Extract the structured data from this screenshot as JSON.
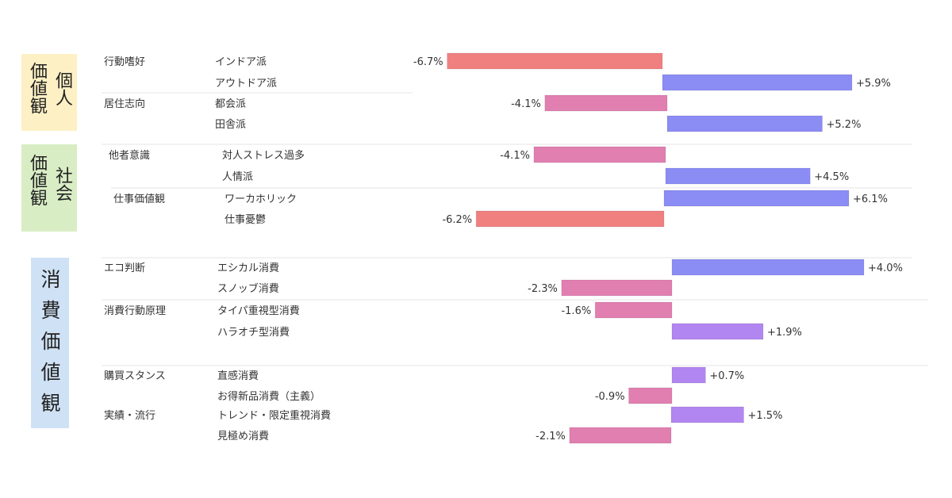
{
  "badges": {
    "personal": {
      "main": "価値観",
      "sub": "個人"
    },
    "social": {
      "main": "価値観",
      "sub": "社会"
    },
    "consumer": {
      "main": "消費価値観"
    }
  },
  "colors": {
    "negative_strong": "#f08080",
    "negative": "#e07fb0",
    "positive_strong": "#8c8cf5",
    "positive": "#b286f0",
    "separator": "#e6e6e6",
    "text": "#333333"
  },
  "chart_data": {
    "type": "bar",
    "orientation": "horizontal",
    "value_format": "signed percent",
    "groups": [
      {
        "name": "行動嗜好",
        "items": [
          {
            "label": "インドア派",
            "value": -6.7,
            "display": "-6.7%"
          },
          {
            "label": "アウトドア派",
            "value": 5.9,
            "display": "+5.9%"
          }
        ]
      },
      {
        "name": "居住志向",
        "items": [
          {
            "label": "都会派",
            "value": -4.1,
            "display": "-4.1%"
          },
          {
            "label": "田舎派",
            "value": 5.2,
            "display": "+5.2%"
          }
        ]
      },
      {
        "name": "他者意識",
        "items": [
          {
            "label": "対人ストレス過多",
            "value": -4.1,
            "display": "-4.1%"
          },
          {
            "label": "人情派",
            "value": 4.5,
            "display": "+4.5%"
          }
        ]
      },
      {
        "name": "仕事価値観",
        "items": [
          {
            "label": "ワーカホリック",
            "value": 6.1,
            "display": "+6.1%"
          },
          {
            "label": "仕事憂鬱",
            "value": -6.2,
            "display": "-6.2%"
          }
        ]
      },
      {
        "name": "エコ判断",
        "items": [
          {
            "label": "エシカル消費",
            "value": 4.0,
            "display": "+4.0%"
          },
          {
            "label": "スノッブ消費",
            "value": -2.3,
            "display": "-2.3%"
          }
        ]
      },
      {
        "name": "消費行動原理",
        "items": [
          {
            "label": "タイパ重視型消費",
            "value": -1.6,
            "display": "-1.6%"
          },
          {
            "label": "ハラオチ型消費",
            "value": 1.9,
            "display": "+1.9%"
          }
        ]
      },
      {
        "name": "購買スタンス",
        "items": [
          {
            "label": "直感消費",
            "value": 0.7,
            "display": "+0.7%"
          },
          {
            "label": "お得新品消費（主義）",
            "value": -0.9,
            "display": "-0.9%"
          }
        ]
      },
      {
        "name": "実績・流行",
        "items": [
          {
            "label": "トレンド・限定重視消費",
            "value": 1.5,
            "display": "+1.5%"
          },
          {
            "label": "見極め消費",
            "value": -2.1,
            "display": "-2.1%"
          }
        ]
      }
    ]
  }
}
